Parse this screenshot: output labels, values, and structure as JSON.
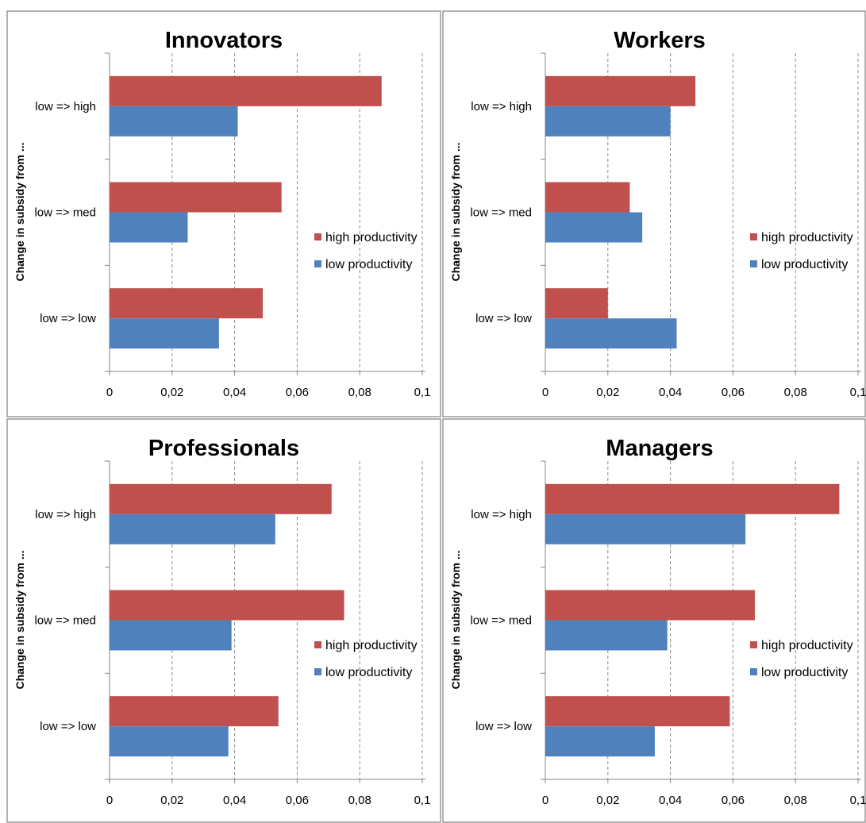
{
  "chart_data": [
    {
      "type": "bar",
      "orientation": "horizontal",
      "title": "Innovators",
      "ylabel": "Change in subsidy from ...",
      "xlabel": "",
      "categories": [
        "low => high",
        "low => med",
        "low => low"
      ],
      "series": [
        {
          "name": "high productivity",
          "color": "#C0504D",
          "values": [
            0.087,
            0.055,
            0.049
          ]
        },
        {
          "name": "low productivity",
          "color": "#4F81BD",
          "values": [
            0.041,
            0.025,
            0.035
          ]
        }
      ],
      "xlim": [
        0,
        0.1
      ],
      "xticks": [
        "0",
        "0,02",
        "0,04",
        "0,06",
        "0,08",
        "0,1"
      ],
      "grid": "vertical dashed",
      "legend": "right"
    },
    {
      "type": "bar",
      "orientation": "horizontal",
      "title": "Workers",
      "ylabel": "Change in subsidy from ...",
      "xlabel": "",
      "categories": [
        "low => high",
        "low => med",
        "low => low"
      ],
      "series": [
        {
          "name": "high productivity",
          "color": "#C0504D",
          "values": [
            0.048,
            0.027,
            0.02
          ]
        },
        {
          "name": "low productivity",
          "color": "#4F81BD",
          "values": [
            0.04,
            0.031,
            0.042
          ]
        }
      ],
      "xlim": [
        0,
        0.1
      ],
      "xticks": [
        "0",
        "0,02",
        "0,04",
        "0,06",
        "0,08",
        "0,1"
      ],
      "grid": "vertical dashed",
      "legend": "right"
    },
    {
      "type": "bar",
      "orientation": "horizontal",
      "title": "Professionals",
      "ylabel": "Change in subsidy from ...",
      "xlabel": "",
      "categories": [
        "low => high",
        "low => med",
        "low => low"
      ],
      "series": [
        {
          "name": "high productivity",
          "color": "#C0504D",
          "values": [
            0.071,
            0.075,
            0.054
          ]
        },
        {
          "name": "low productivity",
          "color": "#4F81BD",
          "values": [
            0.053,
            0.039,
            0.038
          ]
        }
      ],
      "xlim": [
        0,
        0.1
      ],
      "xticks": [
        "0",
        "0,02",
        "0,04",
        "0,06",
        "0,08",
        "0,1"
      ],
      "grid": "vertical dashed",
      "legend": "right"
    },
    {
      "type": "bar",
      "orientation": "horizontal",
      "title": "Managers",
      "ylabel": "Change in subsidy from ...",
      "xlabel": "",
      "categories": [
        "low => high",
        "low => med",
        "low => low"
      ],
      "series": [
        {
          "name": "high productivity",
          "color": "#C0504D",
          "values": [
            0.094,
            0.067,
            0.059
          ]
        },
        {
          "name": "low productivity",
          "color": "#4F81BD",
          "values": [
            0.064,
            0.039,
            0.035
          ]
        }
      ],
      "xlim": [
        0,
        0.1
      ],
      "xticks": [
        "0",
        "0,02",
        "0,04",
        "0,06",
        "0,08",
        "0,1"
      ],
      "grid": "vertical dashed",
      "legend": "right"
    }
  ]
}
